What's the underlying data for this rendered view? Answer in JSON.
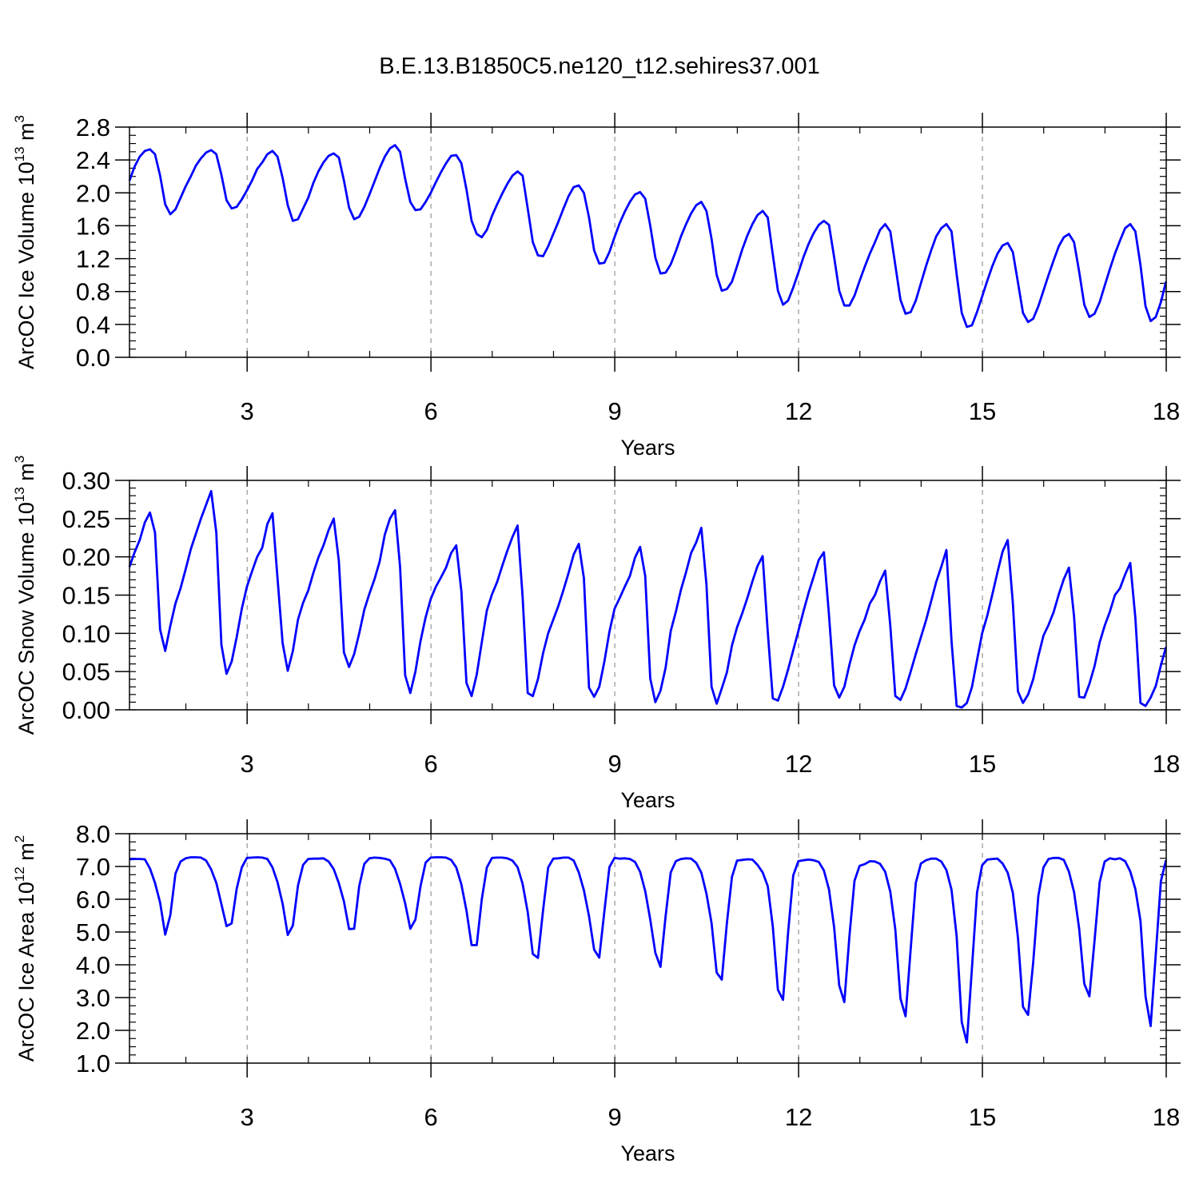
{
  "figure_title": "B.E.13.B1850C5.ne120_t12.sehires37.001",
  "series_color": "#0000ff",
  "chart_data": [
    {
      "type": "line",
      "title": "B.E.13.B1850C5.ne120_t12.sehires37.001",
      "xlabel": "Years",
      "ylabel": "ArcOC Ice Volume 10",
      "ylabel_exp": "13",
      "ylabel_unit": "m",
      "ylabel_unit_exp": "3",
      "xlim": [
        1.08,
        18.0
      ],
      "ylim": [
        0.0,
        2.8
      ],
      "x_ticks": [
        3,
        6,
        9,
        12,
        15,
        18
      ],
      "y_ticks": [
        "0.0",
        "0.4",
        "0.8",
        "1.2",
        "1.6",
        "2.0",
        "2.4",
        "2.8"
      ],
      "x_minor_step": 1,
      "y_minor_step": 0.1,
      "grid": "dashed vertical at major x ticks",
      "series": [
        {
          "x_start": 1.08,
          "x_step": 0.08333,
          "values": [
            2.15,
            2.32,
            2.44,
            2.51,
            2.53,
            2.47,
            2.21,
            1.86,
            1.74,
            1.8,
            1.94,
            2.08,
            2.2,
            2.33,
            2.42,
            2.49,
            2.52,
            2.47,
            2.22,
            1.91,
            1.81,
            1.83,
            1.92,
            2.03,
            2.15,
            2.29,
            2.37,
            2.47,
            2.51,
            2.44,
            2.18,
            1.85,
            1.66,
            1.68,
            1.81,
            1.94,
            2.12,
            2.26,
            2.37,
            2.45,
            2.48,
            2.43,
            2.15,
            1.82,
            1.68,
            1.71,
            1.83,
            1.98,
            2.14,
            2.3,
            2.44,
            2.54,
            2.58,
            2.5,
            2.17,
            1.89,
            1.79,
            1.8,
            1.89,
            2.0,
            2.13,
            2.25,
            2.36,
            2.45,
            2.46,
            2.36,
            2.04,
            1.66,
            1.5,
            1.46,
            1.55,
            1.72,
            1.86,
            1.99,
            2.11,
            2.21,
            2.26,
            2.21,
            1.81,
            1.4,
            1.24,
            1.23,
            1.35,
            1.5,
            1.65,
            1.81,
            1.96,
            2.07,
            2.09,
            2.0,
            1.7,
            1.3,
            1.14,
            1.15,
            1.28,
            1.46,
            1.63,
            1.77,
            1.89,
            1.98,
            2.01,
            1.93,
            1.6,
            1.21,
            1.02,
            1.03,
            1.13,
            1.29,
            1.47,
            1.62,
            1.75,
            1.85,
            1.89,
            1.78,
            1.44,
            1.0,
            0.81,
            0.83,
            0.92,
            1.11,
            1.31,
            1.48,
            1.62,
            1.73,
            1.78,
            1.7,
            1.25,
            0.81,
            0.64,
            0.69,
            0.85,
            1.03,
            1.22,
            1.38,
            1.51,
            1.61,
            1.66,
            1.61,
            1.22,
            0.81,
            0.63,
            0.63,
            0.75,
            0.93,
            1.1,
            1.26,
            1.4,
            1.55,
            1.62,
            1.53,
            1.12,
            0.7,
            0.53,
            0.55,
            0.69,
            0.9,
            1.11,
            1.3,
            1.47,
            1.57,
            1.62,
            1.53,
            1.01,
            0.54,
            0.37,
            0.39,
            0.55,
            0.74,
            0.93,
            1.11,
            1.26,
            1.36,
            1.39,
            1.28,
            0.91,
            0.54,
            0.43,
            0.47,
            0.62,
            0.81,
            1.0,
            1.18,
            1.35,
            1.46,
            1.5,
            1.4,
            1.04,
            0.64,
            0.49,
            0.53,
            0.67,
            0.87,
            1.07,
            1.26,
            1.42,
            1.57,
            1.62,
            1.53,
            1.12,
            0.62,
            0.44,
            0.49,
            0.67,
            0.92
          ]
        }
      ]
    },
    {
      "type": "line",
      "xlabel": "Years",
      "ylabel": "ArcOC Snow Volume 10",
      "ylabel_exp": "13",
      "ylabel_unit": "m",
      "ylabel_unit_exp": "3",
      "xlim": [
        1.08,
        18.0
      ],
      "ylim": [
        0.0,
        0.3
      ],
      "x_ticks": [
        3,
        6,
        9,
        12,
        15,
        18
      ],
      "y_ticks": [
        "0.00",
        "0.05",
        "0.10",
        "0.15",
        "0.20",
        "0.25",
        "0.30"
      ],
      "x_minor_step": 1,
      "y_minor_step": 0.01,
      "grid": "dashed vertical at major x ticks",
      "series": [
        {
          "x_start": 1.08,
          "x_step": 0.08333,
          "values": [
            0.187,
            0.206,
            0.222,
            0.245,
            0.258,
            0.232,
            0.105,
            0.077,
            0.11,
            0.139,
            0.159,
            0.184,
            0.21,
            0.23,
            0.25,
            0.268,
            0.286,
            0.232,
            0.085,
            0.047,
            0.063,
            0.095,
            0.132,
            0.161,
            0.181,
            0.2,
            0.212,
            0.243,
            0.257,
            0.172,
            0.087,
            0.051,
            0.077,
            0.118,
            0.14,
            0.156,
            0.179,
            0.199,
            0.215,
            0.235,
            0.25,
            0.195,
            0.075,
            0.056,
            0.073,
            0.1,
            0.131,
            0.152,
            0.171,
            0.194,
            0.229,
            0.25,
            0.261,
            0.187,
            0.045,
            0.022,
            0.05,
            0.09,
            0.121,
            0.145,
            0.161,
            0.173,
            0.186,
            0.205,
            0.215,
            0.155,
            0.035,
            0.018,
            0.046,
            0.088,
            0.13,
            0.151,
            0.167,
            0.188,
            0.208,
            0.226,
            0.241,
            0.148,
            0.022,
            0.018,
            0.04,
            0.074,
            0.1,
            0.118,
            0.136,
            0.157,
            0.179,
            0.203,
            0.217,
            0.172,
            0.029,
            0.017,
            0.03,
            0.063,
            0.102,
            0.132,
            0.146,
            0.161,
            0.175,
            0.199,
            0.213,
            0.175,
            0.041,
            0.01,
            0.025,
            0.055,
            0.103,
            0.128,
            0.157,
            0.18,
            0.205,
            0.219,
            0.238,
            0.164,
            0.03,
            0.008,
            0.028,
            0.049,
            0.084,
            0.108,
            0.126,
            0.146,
            0.168,
            0.188,
            0.201,
            0.102,
            0.015,
            0.012,
            0.03,
            0.053,
            0.078,
            0.103,
            0.129,
            0.153,
            0.174,
            0.196,
            0.206,
            0.124,
            0.032,
            0.016,
            0.03,
            0.059,
            0.084,
            0.103,
            0.118,
            0.139,
            0.15,
            0.168,
            0.182,
            0.11,
            0.018,
            0.013,
            0.028,
            0.05,
            0.073,
            0.095,
            0.117,
            0.142,
            0.167,
            0.187,
            0.209,
            0.09,
            0.005,
            0.003,
            0.009,
            0.03,
            0.065,
            0.1,
            0.123,
            0.151,
            0.18,
            0.207,
            0.222,
            0.14,
            0.024,
            0.009,
            0.02,
            0.04,
            0.07,
            0.097,
            0.111,
            0.128,
            0.151,
            0.171,
            0.186,
            0.122,
            0.017,
            0.016,
            0.034,
            0.057,
            0.088,
            0.11,
            0.128,
            0.15,
            0.159,
            0.177,
            0.192,
            0.12,
            0.009,
            0.005,
            0.016,
            0.031,
            0.058,
            0.082
          ]
        }
      ]
    },
    {
      "type": "line",
      "xlabel": "Years",
      "ylabel": "ArcOC Ice Area 10",
      "ylabel_exp": "12",
      "ylabel_unit": "m",
      "ylabel_unit_exp": "2",
      "xlim": [
        1.08,
        18.0
      ],
      "ylim": [
        1.0,
        8.0
      ],
      "x_ticks": [
        3,
        6,
        9,
        12,
        15,
        18
      ],
      "y_ticks": [
        "1.0",
        "2.0",
        "3.0",
        "4.0",
        "5.0",
        "6.0",
        "7.0",
        "8.0"
      ],
      "x_minor_step": 1,
      "y_minor_step": 0.25,
      "grid": "dashed vertical at major x ticks",
      "series": [
        {
          "x_start": 1.08,
          "x_step": 0.08333,
          "values": [
            7.22,
            7.23,
            7.23,
            7.22,
            6.94,
            6.5,
            5.9,
            4.92,
            5.52,
            6.78,
            7.15,
            7.25,
            7.28,
            7.28,
            7.27,
            7.18,
            6.91,
            6.5,
            5.85,
            5.18,
            5.26,
            6.32,
            6.97,
            7.26,
            7.27,
            7.28,
            7.27,
            7.23,
            6.97,
            6.52,
            5.86,
            4.91,
            5.2,
            6.42,
            7.05,
            7.23,
            7.24,
            7.24,
            7.25,
            7.15,
            6.92,
            6.49,
            5.93,
            5.09,
            5.1,
            6.4,
            7.08,
            7.25,
            7.27,
            7.26,
            7.24,
            7.19,
            6.93,
            6.47,
            5.87,
            5.1,
            5.38,
            6.4,
            7.12,
            7.27,
            7.28,
            7.28,
            7.27,
            7.2,
            6.97,
            6.45,
            5.65,
            4.6,
            4.6,
            5.99,
            6.97,
            7.26,
            7.27,
            7.27,
            7.25,
            7.18,
            6.98,
            6.47,
            5.61,
            4.33,
            4.21,
            5.66,
            6.97,
            7.24,
            7.25,
            7.27,
            7.27,
            7.18,
            6.82,
            6.27,
            5.48,
            4.46,
            4.22,
            5.63,
            6.98,
            7.26,
            7.24,
            7.25,
            7.23,
            7.14,
            6.84,
            6.25,
            5.38,
            4.36,
            3.94,
            5.48,
            6.82,
            7.16,
            7.23,
            7.25,
            7.24,
            7.11,
            6.81,
            6.17,
            5.27,
            3.76,
            3.55,
            5.28,
            6.68,
            7.18,
            7.2,
            7.22,
            7.21,
            7.05,
            6.82,
            6.4,
            5.17,
            3.24,
            2.93,
            5.0,
            6.73,
            7.16,
            7.19,
            7.21,
            7.19,
            7.14,
            6.88,
            6.3,
            5.15,
            3.37,
            2.86,
            4.88,
            6.56,
            7.02,
            7.07,
            7.16,
            7.15,
            7.08,
            6.84,
            6.23,
            5.07,
            2.97,
            2.43,
            4.48,
            6.5,
            7.09,
            7.19,
            7.24,
            7.24,
            7.15,
            6.89,
            6.29,
            4.87,
            2.25,
            1.63,
            3.92,
            6.2,
            7.04,
            7.21,
            7.23,
            7.24,
            7.09,
            6.81,
            6.2,
            4.83,
            2.72,
            2.47,
            4.08,
            6.1,
            6.97,
            7.23,
            7.26,
            7.26,
            7.2,
            6.84,
            6.22,
            5.1,
            3.42,
            3.04,
            4.73,
            6.52,
            7.15,
            7.25,
            7.22,
            7.25,
            7.16,
            6.85,
            6.31,
            5.34,
            3.04,
            2.13,
            4.31,
            6.55,
            7.19
          ]
        }
      ]
    }
  ]
}
